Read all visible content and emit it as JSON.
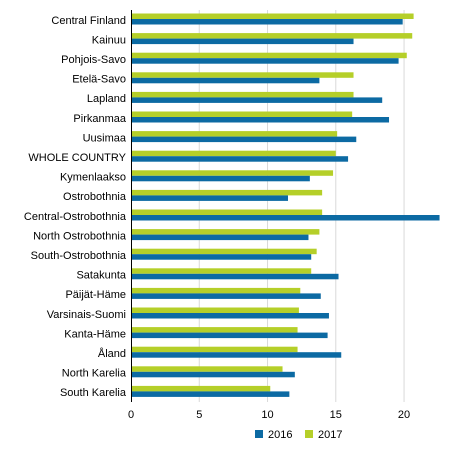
{
  "chart_data": {
    "type": "bar",
    "orientation": "horizontal",
    "title": "",
    "xlabel": "",
    "ylabel": "",
    "xlim": [
      0,
      23
    ],
    "x_ticks": [
      0,
      5,
      10,
      15,
      20
    ],
    "grid": true,
    "legend_position": "bottom",
    "categories": [
      "Central Finland",
      "Kainuu",
      "Pohjois-Savo",
      "Etelä-Savo",
      "Lapland",
      "Pirkanmaa",
      "Uusimaa",
      "WHOLE COUNTRY",
      "Kymenlaakso",
      "Ostrobothnia",
      "Central-Ostrobothnia",
      "North Ostrobothnia",
      "South-Ostrobothnia",
      "Satakunta",
      "Päijät-Häme",
      "Varsinais-Suomi",
      "Kanta-Häme",
      "Åland",
      "North Karelia",
      "South Karelia"
    ],
    "series": [
      {
        "name": "2017",
        "color": "#b5cf29",
        "values": [
          20.7,
          20.6,
          20.2,
          16.3,
          16.3,
          16.2,
          15.1,
          15.0,
          14.8,
          14.0,
          14.0,
          13.8,
          13.6,
          13.2,
          12.4,
          12.3,
          12.2,
          12.2,
          11.1,
          10.2
        ]
      },
      {
        "name": "2016",
        "color": "#0c6aa3",
        "values": [
          19.9,
          16.3,
          19.6,
          13.8,
          18.4,
          18.9,
          16.5,
          15.9,
          13.1,
          11.5,
          22.6,
          13.0,
          13.2,
          15.2,
          13.9,
          14.5,
          14.4,
          15.4,
          12.0,
          11.6
        ]
      }
    ],
    "legend": [
      {
        "label": "2016",
        "color": "#0c6aa3"
      },
      {
        "label": "2017",
        "color": "#b5cf29"
      }
    ]
  }
}
